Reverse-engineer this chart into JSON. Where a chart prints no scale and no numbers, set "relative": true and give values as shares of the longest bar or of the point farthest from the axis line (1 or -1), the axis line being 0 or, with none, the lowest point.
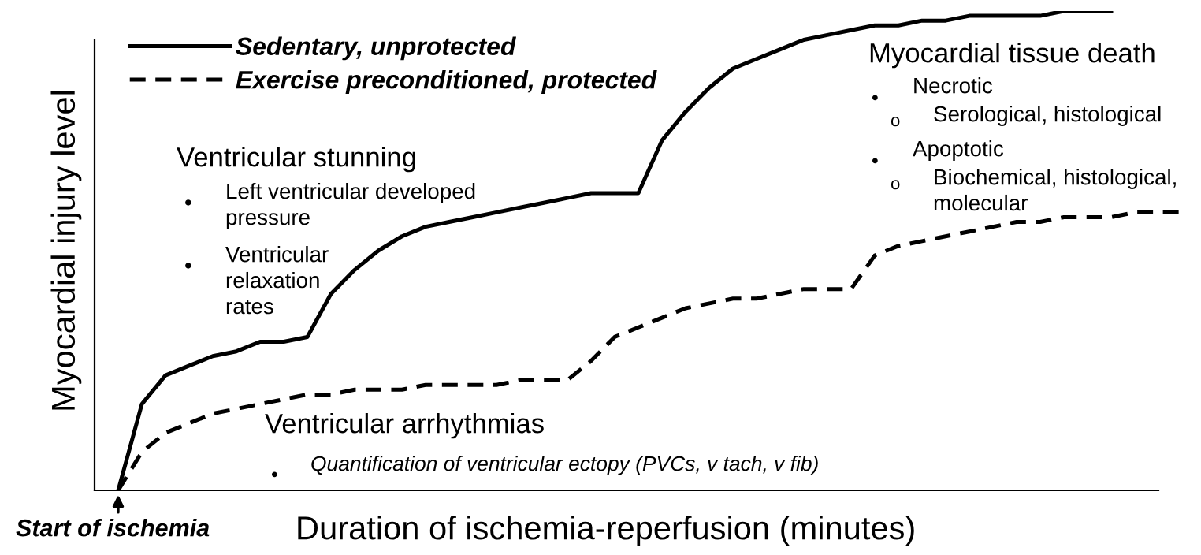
{
  "chart_data": {
    "type": "line",
    "relative": true,
    "xlabel": "Duration of ischemia-reperfusion (minutes)",
    "ylabel": "Myocardial injury level",
    "categories": [
      null,
      null,
      null,
      null,
      null,
      null,
      null,
      null,
      null,
      null,
      null,
      null,
      null,
      null,
      null,
      null,
      null,
      null,
      null,
      null,
      null,
      null,
      null,
      null,
      null,
      null,
      null,
      null,
      null,
      null,
      null,
      null,
      null,
      null,
      null,
      null,
      null,
      null,
      null,
      null,
      null,
      null,
      null,
      null,
      null,
      null
    ],
    "series": [
      {
        "name": "Sedentary, unprotected",
        "color": "#000000",
        "line_style": "solid",
        "values": [
          0,
          0.18,
          0.24,
          0.26,
          0.28,
          0.29,
          0.31,
          0.31,
          0.32,
          0.41,
          0.46,
          0.5,
          0.53,
          0.55,
          0.56,
          0.57,
          0.58,
          0.59,
          0.6,
          0.61,
          0.62,
          0.62,
          0.62,
          0.73,
          0.79,
          0.84,
          0.88,
          0.9,
          0.92,
          0.94,
          0.95,
          0.96,
          0.97,
          0.97,
          0.98,
          0.98,
          0.99,
          0.99,
          0.99,
          0.99,
          1,
          1,
          1,
          null,
          null,
          null
        ]
      },
      {
        "name": "Exercise preconditioned, protected",
        "color": "#000000",
        "line_style": "dashed",
        "values": [
          0,
          0.08,
          0.12,
          0.14,
          0.16,
          0.17,
          0.18,
          0.19,
          0.2,
          0.2,
          0.21,
          0.21,
          0.21,
          0.22,
          0.22,
          0.22,
          0.22,
          0.23,
          0.23,
          0.23,
          0.27,
          0.32,
          0.34,
          0.36,
          0.38,
          0.39,
          0.4,
          0.4,
          0.41,
          0.42,
          0.42,
          0.42,
          0.49,
          0.51,
          0.52,
          0.53,
          0.54,
          0.55,
          0.56,
          0.56,
          0.57,
          0.57,
          0.57,
          0.58,
          0.58,
          0.58
        ]
      }
    ],
    "legend": "top left",
    "grid": false,
    "marker": "none",
    "annotations": [
      "Ventricular stunning",
      "•",
      "Left ventricular developed\npressure",
      "•",
      "Ventricular\nrelaxation\nrates",
      "Myocardial tissue death",
      "•",
      "Necrotic",
      "o",
      "Serological, histological",
      "•",
      "Apoptotic",
      "o",
      "Biochemical, histological,\nmolecular",
      "Ventricular arrhythmias",
      "•",
      "Quantification of ventricular ectopy (PVCs, v tach, v fib)",
      "Start of ischemia"
    ]
  }
}
